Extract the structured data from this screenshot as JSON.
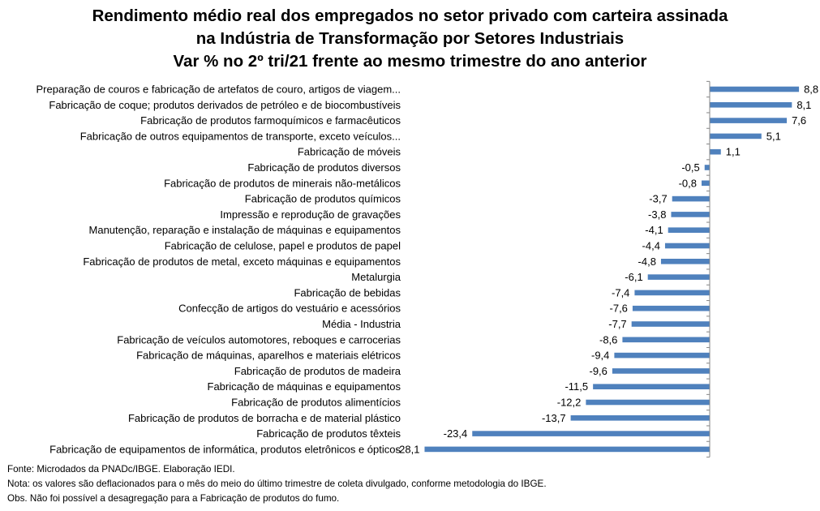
{
  "title": {
    "lines": [
      "Rendimento médio real dos empregados no setor privado com carteira assinada",
      "na Indústria de Transformação por Setores Industriais",
      "Var % no 2º tri/21 frente ao mesmo trimestre do ano anterior"
    ]
  },
  "chart_data": {
    "type": "bar",
    "orientation": "horizontal",
    "categories": [
      "Preparação de couros e fabricação de artefatos de couro, artigos de viagem...",
      "Fabricação de coque; produtos derivados de petróleo e de biocombustíveis",
      "Fabricação de produtos farmoquímicos e farmacêuticos",
      "Fabricação de outros equipamentos de transporte, exceto veículos...",
      "Fabricação de móveis",
      "Fabricação de produtos diversos",
      "Fabricação de produtos de minerais não-metálicos",
      "Fabricação de produtos químicos",
      "Impressão e reprodução de gravações",
      "Manutenção, reparação e instalação de máquinas e equipamentos",
      "Fabricação de celulose, papel e produtos de papel",
      "Fabricação de produtos de metal, exceto máquinas e equipamentos",
      "Metalurgia",
      "Fabricação de bebidas",
      "Confecção de artigos do vestuário e acessórios",
      "Média - Industria",
      "Fabricação de veículos automotores, reboques e carrocerias",
      "Fabricação de máquinas, aparelhos e materiais elétricos",
      "Fabricação de produtos de madeira",
      "Fabricação de máquinas e equipamentos",
      "Fabricação de produtos alimentícios",
      "Fabricação de produtos de borracha e de material plástico",
      "Fabricação de produtos têxteis",
      "Fabricação de equipamentos de informática, produtos eletrônicos e ópticos"
    ],
    "values": [
      8.8,
      8.1,
      7.6,
      5.1,
      1.1,
      -0.5,
      -0.8,
      -3.7,
      -3.8,
      -4.1,
      -4.4,
      -4.8,
      -6.1,
      -7.4,
      -7.6,
      -7.7,
      -8.6,
      -9.4,
      -9.6,
      -11.5,
      -12.2,
      -13.7,
      -23.4,
      -28.1
    ],
    "value_labels": [
      "8,8",
      "8,1",
      "7,6",
      "5,1",
      "1,1",
      "-0,5",
      "-0,8",
      "-3,7",
      "-3,8",
      "-4,1",
      "-4,4",
      "-4,8",
      "-6,1",
      "-7,4",
      "-7,6",
      "-7,7",
      "-8,6",
      "-9,4",
      "-9,6",
      "-11,5",
      "-12,2",
      "-13,7",
      "-23,4",
      "-28,1"
    ],
    "xlim": [
      -28.1,
      8.8
    ],
    "grid": false,
    "legend": "none",
    "bar_color": "#4f81bd"
  },
  "notes": {
    "fonte": "Fonte: Microdados da PNADc/IBGE. Elaboração IEDI.",
    "nota": "Nota: os valores são deflacionados para o mês do meio do último trimestre de coleta divulgado, conforme metodologia do IBGE.",
    "obs": "Obs. Não foi possível a desagregação para a Fabricação de produtos do fumo."
  }
}
